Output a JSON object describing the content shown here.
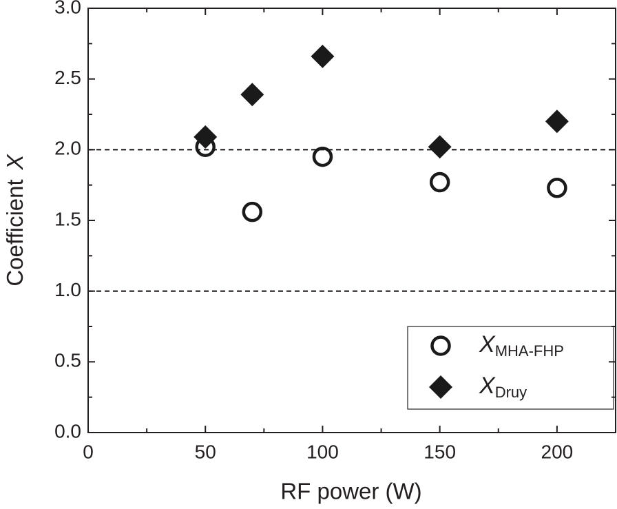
{
  "chart_data": {
    "type": "scatter",
    "xlabel": "RF power (W)",
    "ylabel": "Coefficient",
    "ylabel_symbol": "X",
    "xlim": [
      0,
      225
    ],
    "ylim": [
      0,
      3
    ],
    "xticks": [
      0,
      50,
      100,
      150,
      200
    ],
    "yticks": [
      {
        "value": 0,
        "label": "0.0"
      },
      0.5,
      {
        "value": 1,
        "label": "1.0"
      },
      1.5,
      {
        "value": 2,
        "label": "2.0"
      },
      2.5,
      {
        "value": 3,
        "label": "3.0"
      }
    ],
    "x_minor_ticks": [
      25,
      75,
      125,
      175
    ],
    "y_minor_ticks": [
      0.25,
      0.75,
      1.25,
      1.75,
      2.25,
      2.75
    ],
    "hlines": [
      1,
      2
    ],
    "legend": "lower right",
    "series": [
      {
        "name": "X",
        "subscript": "MHA-FHP",
        "marker": "open-circle",
        "color": "#1a1a1a",
        "x": [
          50,
          70,
          100,
          150,
          200
        ],
        "values": [
          2.02,
          1.56,
          1.95,
          1.77,
          1.73
        ]
      },
      {
        "name": "X",
        "subscript": "Druy",
        "marker": "diamond",
        "color": "#1a1a1a",
        "x": [
          50,
          70,
          100,
          150,
          200
        ],
        "values": [
          2.09,
          2.39,
          2.66,
          2.02,
          2.2
        ]
      }
    ]
  }
}
